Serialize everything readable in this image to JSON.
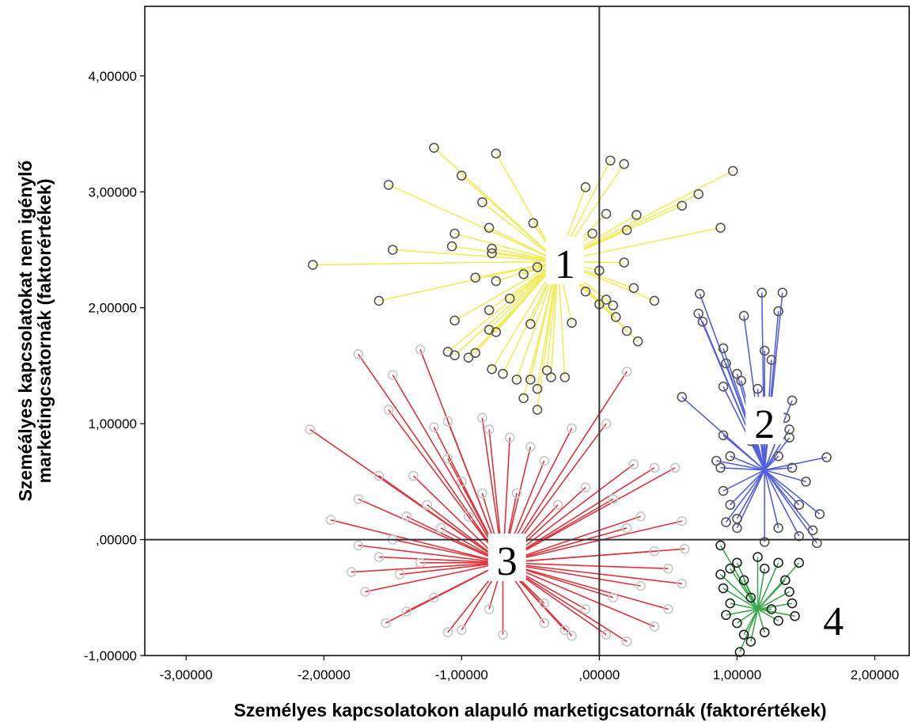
{
  "chart_data": {
    "type": "scatter",
    "subtype": "cluster-star-plot",
    "xlabel": "Személyes kapcsolatokon alapuló marketigcsatornák  (faktorértékek)",
    "ylabel_lines": [
      "Szeméályes kapcsolatokat nem igénylő",
      "marketingcsatornák (faktorértékek)"
    ],
    "xlim": [
      -3.3,
      2.25
    ],
    "ylim": [
      -1.0,
      4.6
    ],
    "x_ticks": [
      -3,
      -2,
      -1,
      0,
      1,
      2
    ],
    "x_tick_labels": [
      "-3,00000",
      "-2,00000",
      "-1,00000",
      ",00000",
      "1,00000",
      "2,00000"
    ],
    "y_ticks": [
      -1,
      0,
      1,
      2,
      3,
      4
    ],
    "y_tick_labels": [
      "-1,00000",
      ",00000",
      "1,00000",
      "2,00000",
      "3,00000",
      "4,00000"
    ],
    "reference_lines": {
      "x": 0,
      "y": 0
    },
    "grid": false,
    "legend": "none",
    "clusters": [
      {
        "label": "1",
        "color": "#f3ec5c",
        "centroid": [
          -0.3,
          2.4
        ],
        "label_at": [
          -0.25,
          2.38
        ],
        "points": [
          [
            -1.2,
            3.38
          ],
          [
            -0.75,
            3.33
          ],
          [
            -1.0,
            3.14
          ],
          [
            -1.53,
            3.06
          ],
          [
            -0.85,
            2.91
          ],
          [
            -0.48,
            2.73
          ],
          [
            -1.05,
            2.64
          ],
          [
            -0.8,
            2.69
          ],
          [
            -1.5,
            2.5
          ],
          [
            -0.78,
            2.51
          ],
          [
            -0.78,
            2.47
          ],
          [
            -0.9,
            2.26
          ],
          [
            -0.75,
            2.23
          ],
          [
            -2.08,
            2.37
          ],
          [
            -1.07,
            2.53
          ],
          [
            -0.55,
            2.29
          ],
          [
            -0.45,
            2.35
          ],
          [
            -0.65,
            2.08
          ],
          [
            -1.6,
            2.06
          ],
          [
            -0.8,
            1.98
          ],
          [
            -1.05,
            1.89
          ],
          [
            -0.8,
            1.81
          ],
          [
            -0.75,
            1.79
          ],
          [
            -0.5,
            1.86
          ],
          [
            -1.1,
            1.62
          ],
          [
            -1.05,
            1.59
          ],
          [
            -0.9,
            1.61
          ],
          [
            -0.95,
            1.57
          ],
          [
            -0.78,
            1.47
          ],
          [
            -0.7,
            1.43
          ],
          [
            -0.6,
            1.38
          ],
          [
            -0.5,
            1.38
          ],
          [
            -0.55,
            1.22
          ],
          [
            -0.45,
            1.12
          ],
          [
            -0.45,
            1.3
          ],
          [
            -0.38,
            1.46
          ],
          [
            -0.35,
            1.4
          ],
          [
            -0.25,
            1.4
          ],
          [
            -0.2,
            1.87
          ],
          [
            -0.1,
            2.14
          ],
          [
            -0.1,
            3.04
          ],
          [
            -0.05,
            2.64
          ],
          [
            0.0,
            2.32
          ],
          [
            0.0,
            2.03
          ],
          [
            0.05,
            2.07
          ],
          [
            0.1,
            2.02
          ],
          [
            0.05,
            2.81
          ],
          [
            0.08,
            3.27
          ],
          [
            0.18,
            3.24
          ],
          [
            0.2,
            2.67
          ],
          [
            0.27,
            2.8
          ],
          [
            0.18,
            2.39
          ],
          [
            0.25,
            2.17
          ],
          [
            0.4,
            2.06
          ],
          [
            0.28,
            1.71
          ],
          [
            0.2,
            1.8
          ],
          [
            0.12,
            1.92
          ],
          [
            0.6,
            2.88
          ],
          [
            0.72,
            2.98
          ],
          [
            0.97,
            3.18
          ],
          [
            0.88,
            2.69
          ]
        ]
      },
      {
        "label": "2",
        "color": "#5260e0",
        "centroid": [
          1.2,
          0.6
        ],
        "label_at": [
          1.2,
          1.0
        ],
        "points": [
          [
            0.73,
            2.12
          ],
          [
            0.72,
            1.95
          ],
          [
            0.75,
            1.88
          ],
          [
            1.05,
            1.93
          ],
          [
            1.18,
            2.13
          ],
          [
            1.33,
            2.13
          ],
          [
            1.3,
            1.97
          ],
          [
            1.2,
            1.63
          ],
          [
            1.25,
            1.55
          ],
          [
            0.9,
            1.65
          ],
          [
            0.92,
            1.52
          ],
          [
            1.0,
            1.43
          ],
          [
            1.03,
            1.37
          ],
          [
            1.15,
            1.3
          ],
          [
            0.9,
            1.32
          ],
          [
            0.6,
            1.23
          ],
          [
            1.4,
            1.2
          ],
          [
            1.35,
            1.05
          ],
          [
            1.38,
            0.95
          ],
          [
            1.38,
            0.88
          ],
          [
            0.9,
            0.9
          ],
          [
            1.1,
            0.85
          ],
          [
            1.3,
            0.72
          ],
          [
            0.85,
            0.68
          ],
          [
            0.88,
            0.62
          ],
          [
            1.4,
            0.62
          ],
          [
            1.65,
            0.71
          ],
          [
            1.5,
            0.5
          ],
          [
            1.45,
            0.3
          ],
          [
            1.6,
            0.22
          ],
          [
            0.9,
            0.42
          ],
          [
            0.95,
            0.3
          ],
          [
            0.92,
            0.15
          ],
          [
            1.0,
            0.18
          ],
          [
            1.3,
            0.1
          ],
          [
            1.55,
            0.08
          ],
          [
            1.58,
            -0.03
          ],
          [
            1.45,
            0.03
          ],
          [
            1.2,
            -0.02
          ],
          [
            1.0,
            0.1
          ],
          [
            1.18,
            0.9
          ],
          [
            0.95,
            0.72
          ]
        ]
      },
      {
        "label": "3",
        "color": "#e0333c",
        "centroid": [
          -0.7,
          -0.2
        ],
        "label_at": [
          -0.67,
          -0.18
        ],
        "points": [
          [
            -1.75,
            1.6
          ],
          [
            -1.3,
            1.64
          ],
          [
            -1.5,
            1.42
          ],
          [
            -1.53,
            1.12
          ],
          [
            -1.2,
            0.97
          ],
          [
            -1.1,
            1.02
          ],
          [
            -0.85,
            1.05
          ],
          [
            -0.8,
            0.95
          ],
          [
            -0.65,
            0.88
          ],
          [
            -0.5,
            0.8
          ],
          [
            -0.4,
            0.68
          ],
          [
            -0.2,
            0.96
          ],
          [
            0.05,
            1.0
          ],
          [
            0.2,
            1.45
          ],
          [
            0.25,
            0.65
          ],
          [
            0.4,
            0.62
          ],
          [
            0.55,
            0.62
          ],
          [
            0.6,
            0.16
          ],
          [
            0.62,
            -0.08
          ],
          [
            0.6,
            -0.38
          ],
          [
            0.5,
            -0.6
          ],
          [
            0.4,
            -0.75
          ],
          [
            0.2,
            -0.88
          ],
          [
            0.05,
            -0.82
          ],
          [
            -0.2,
            -0.83
          ],
          [
            -0.4,
            -0.72
          ],
          [
            -0.7,
            -0.82
          ],
          [
            -1.0,
            -0.78
          ],
          [
            -1.1,
            -0.8
          ],
          [
            -1.4,
            -0.62
          ],
          [
            -1.55,
            -0.72
          ],
          [
            -1.7,
            -0.45
          ],
          [
            -1.8,
            -0.28
          ],
          [
            -1.75,
            -0.05
          ],
          [
            -1.95,
            0.17
          ],
          [
            -2.1,
            0.95
          ],
          [
            -1.75,
            0.35
          ],
          [
            -1.6,
            0.55
          ],
          [
            -1.35,
            0.55
          ],
          [
            -1.1,
            0.7
          ],
          [
            -1.0,
            0.5
          ],
          [
            -0.85,
            0.4
          ],
          [
            -0.6,
            0.4
          ],
          [
            -0.3,
            0.3
          ],
          [
            -0.1,
            0.45
          ],
          [
            0.1,
            0.35
          ],
          [
            0.3,
            0.2
          ],
          [
            0.4,
            -0.1
          ],
          [
            0.3,
            -0.4
          ],
          [
            0.1,
            -0.5
          ],
          [
            -0.1,
            -0.6
          ],
          [
            -0.4,
            -0.55
          ],
          [
            -0.8,
            -0.6
          ],
          [
            -1.2,
            -0.5
          ],
          [
            -1.45,
            -0.3
          ],
          [
            -1.5,
            0.0
          ],
          [
            -1.4,
            0.2
          ],
          [
            -1.25,
            0.3
          ],
          [
            -1.6,
            -0.15
          ],
          [
            -1.3,
            -0.2
          ],
          [
            -1.15,
            0.1
          ],
          [
            -0.95,
            0.2
          ],
          [
            0.2,
            0.1
          ],
          [
            0.5,
            -0.25
          ],
          [
            -0.25,
            -0.78
          ]
        ]
      },
      {
        "label": "4",
        "color": "#3aa84c",
        "centroid": [
          1.15,
          -0.6
        ],
        "label_at": [
          1.7,
          -0.7
        ],
        "points": [
          [
            0.88,
            -0.05
          ],
          [
            0.88,
            -0.3
          ],
          [
            0.9,
            -0.42
          ],
          [
            0.95,
            -0.55
          ],
          [
            0.92,
            -0.65
          ],
          [
            1.0,
            -0.72
          ],
          [
            1.05,
            -0.82
          ],
          [
            1.02,
            -0.97
          ],
          [
            1.1,
            -0.88
          ],
          [
            1.2,
            -0.8
          ],
          [
            1.3,
            -0.7
          ],
          [
            1.42,
            -0.66
          ],
          [
            1.38,
            -0.45
          ],
          [
            1.35,
            -0.35
          ],
          [
            1.45,
            -0.2
          ],
          [
            1.4,
            -0.55
          ],
          [
            1.3,
            -0.2
          ],
          [
            1.2,
            -0.25
          ],
          [
            1.15,
            -0.15
          ],
          [
            1.0,
            -0.2
          ],
          [
            1.05,
            -0.35
          ],
          [
            0.95,
            -0.25
          ],
          [
            1.1,
            -0.5
          ],
          [
            1.25,
            -0.6
          ]
        ]
      }
    ]
  }
}
